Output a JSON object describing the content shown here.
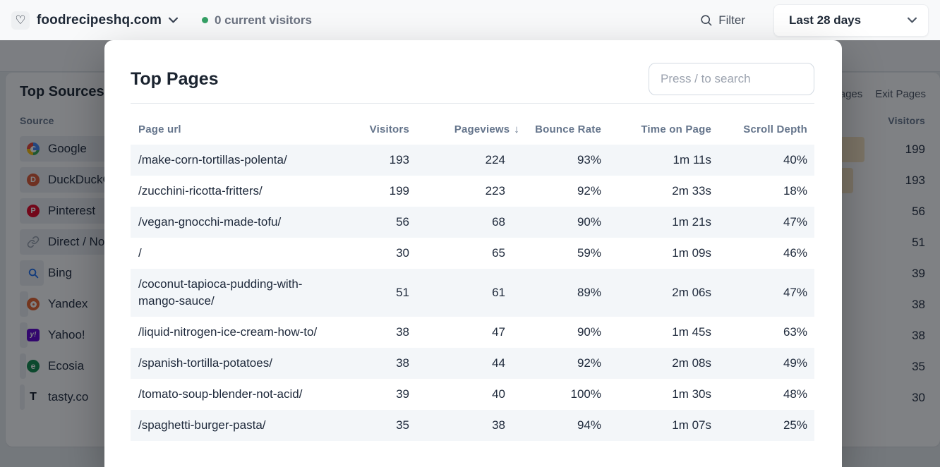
{
  "header": {
    "site_name": "foodrecipeshq.com",
    "visitors_status": "0 current visitors",
    "filter_label": "Filter",
    "date_range": "Last 28 days"
  },
  "modal": {
    "title": "Top Pages",
    "search_placeholder": "Press / to search",
    "table": {
      "columns": [
        "Page url",
        "Visitors",
        "Pageviews",
        "Bounce Rate",
        "Time on Page",
        "Scroll Depth"
      ],
      "sorted_by": "Pageviews",
      "sort_direction": "desc",
      "sort_arrow": "↓",
      "rows": [
        {
          "page_url": "/make-corn-tortillas-polenta/",
          "visitors": "193",
          "pageviews": "224",
          "bounce_rate": "93%",
          "time_on_page": "1m 11s",
          "scroll_depth": "40%"
        },
        {
          "page_url": "/zucchini-ricotta-fritters/",
          "visitors": "199",
          "pageviews": "223",
          "bounce_rate": "92%",
          "time_on_page": "2m 33s",
          "scroll_depth": "18%"
        },
        {
          "page_url": "/vegan-gnocchi-made-tofu/",
          "visitors": "56",
          "pageviews": "68",
          "bounce_rate": "90%",
          "time_on_page": "1m 21s",
          "scroll_depth": "47%"
        },
        {
          "page_url": "/",
          "visitors": "30",
          "pageviews": "65",
          "bounce_rate": "59%",
          "time_on_page": "1m 09s",
          "scroll_depth": "46%"
        },
        {
          "page_url": "/coconut-tapioca-pudding-with-mango-sauce/",
          "visitors": "51",
          "pageviews": "61",
          "bounce_rate": "89%",
          "time_on_page": "2m 06s",
          "scroll_depth": "47%"
        },
        {
          "page_url": "/liquid-nitrogen-ice-cream-how-to/",
          "visitors": "38",
          "pageviews": "47",
          "bounce_rate": "90%",
          "time_on_page": "1m 45s",
          "scroll_depth": "63%"
        },
        {
          "page_url": "/spanish-tortilla-potatoes/",
          "visitors": "38",
          "pageviews": "44",
          "bounce_rate": "92%",
          "time_on_page": "2m 08s",
          "scroll_depth": "49%"
        },
        {
          "page_url": "/tomato-soup-blender-not-acid/",
          "visitors": "39",
          "pageviews": "40",
          "bounce_rate": "100%",
          "time_on_page": "1m 30s",
          "scroll_depth": "48%"
        },
        {
          "page_url": "/spaghetti-burger-pasta/",
          "visitors": "35",
          "pageviews": "38",
          "bounce_rate": "94%",
          "time_on_page": "1m 07s",
          "scroll_depth": "25%"
        }
      ]
    }
  },
  "background": {
    "top_sources": {
      "title": "Top Sources",
      "column_label": "Source",
      "items": [
        {
          "name": "Google",
          "icon": "google",
          "bar": 1.0
        },
        {
          "name": "DuckDuckGo",
          "icon": "duckduckgo",
          "bar": 0.48
        },
        {
          "name": "Pinterest",
          "icon": "pinterest",
          "bar": 0.33
        },
        {
          "name": "Direct / None",
          "icon": "direct",
          "bar": 0.28
        },
        {
          "name": "Bing",
          "icon": "bing",
          "bar": 0.056
        },
        {
          "name": "Yandex",
          "icon": "yandex",
          "bar": 0.02
        },
        {
          "name": "Yahoo!",
          "icon": "yahoo",
          "bar": 0.018
        },
        {
          "name": "Ecosia",
          "icon": "ecosia",
          "bar": 0.015
        },
        {
          "name": "tasty.co",
          "icon": "tasty",
          "bar": 0.012
        }
      ]
    },
    "pages_panel": {
      "tabs": [
        {
          "label": "Entry Pages"
        },
        {
          "label": "Exit Pages"
        }
      ],
      "column_label": "Visitors",
      "rows": [
        {
          "visitors": "199",
          "bar": 1.0
        },
        {
          "visitors": "193",
          "bar": 0.97
        },
        {
          "visitors": "56",
          "bar": 0.281
        },
        {
          "visitors": "51",
          "bar": 0.256
        },
        {
          "visitors": "39",
          "bar": 0.196
        },
        {
          "visitors": "38",
          "bar": 0.191
        },
        {
          "visitors": "38",
          "bar": 0.191
        },
        {
          "visitors": "35",
          "bar": 0.176
        },
        {
          "visitors": "30",
          "bar": 0.151
        }
      ]
    }
  },
  "colors": {
    "dark_text": "#1e293b",
    "muted_text": "#64748b",
    "green_dot": "#35a065",
    "zebra_stripe": "#f3f6f9",
    "source_bar": "#edeff2",
    "pages_bar": "#f8e3c0",
    "backdrop": "rgba(10,14,20,0.52)"
  }
}
